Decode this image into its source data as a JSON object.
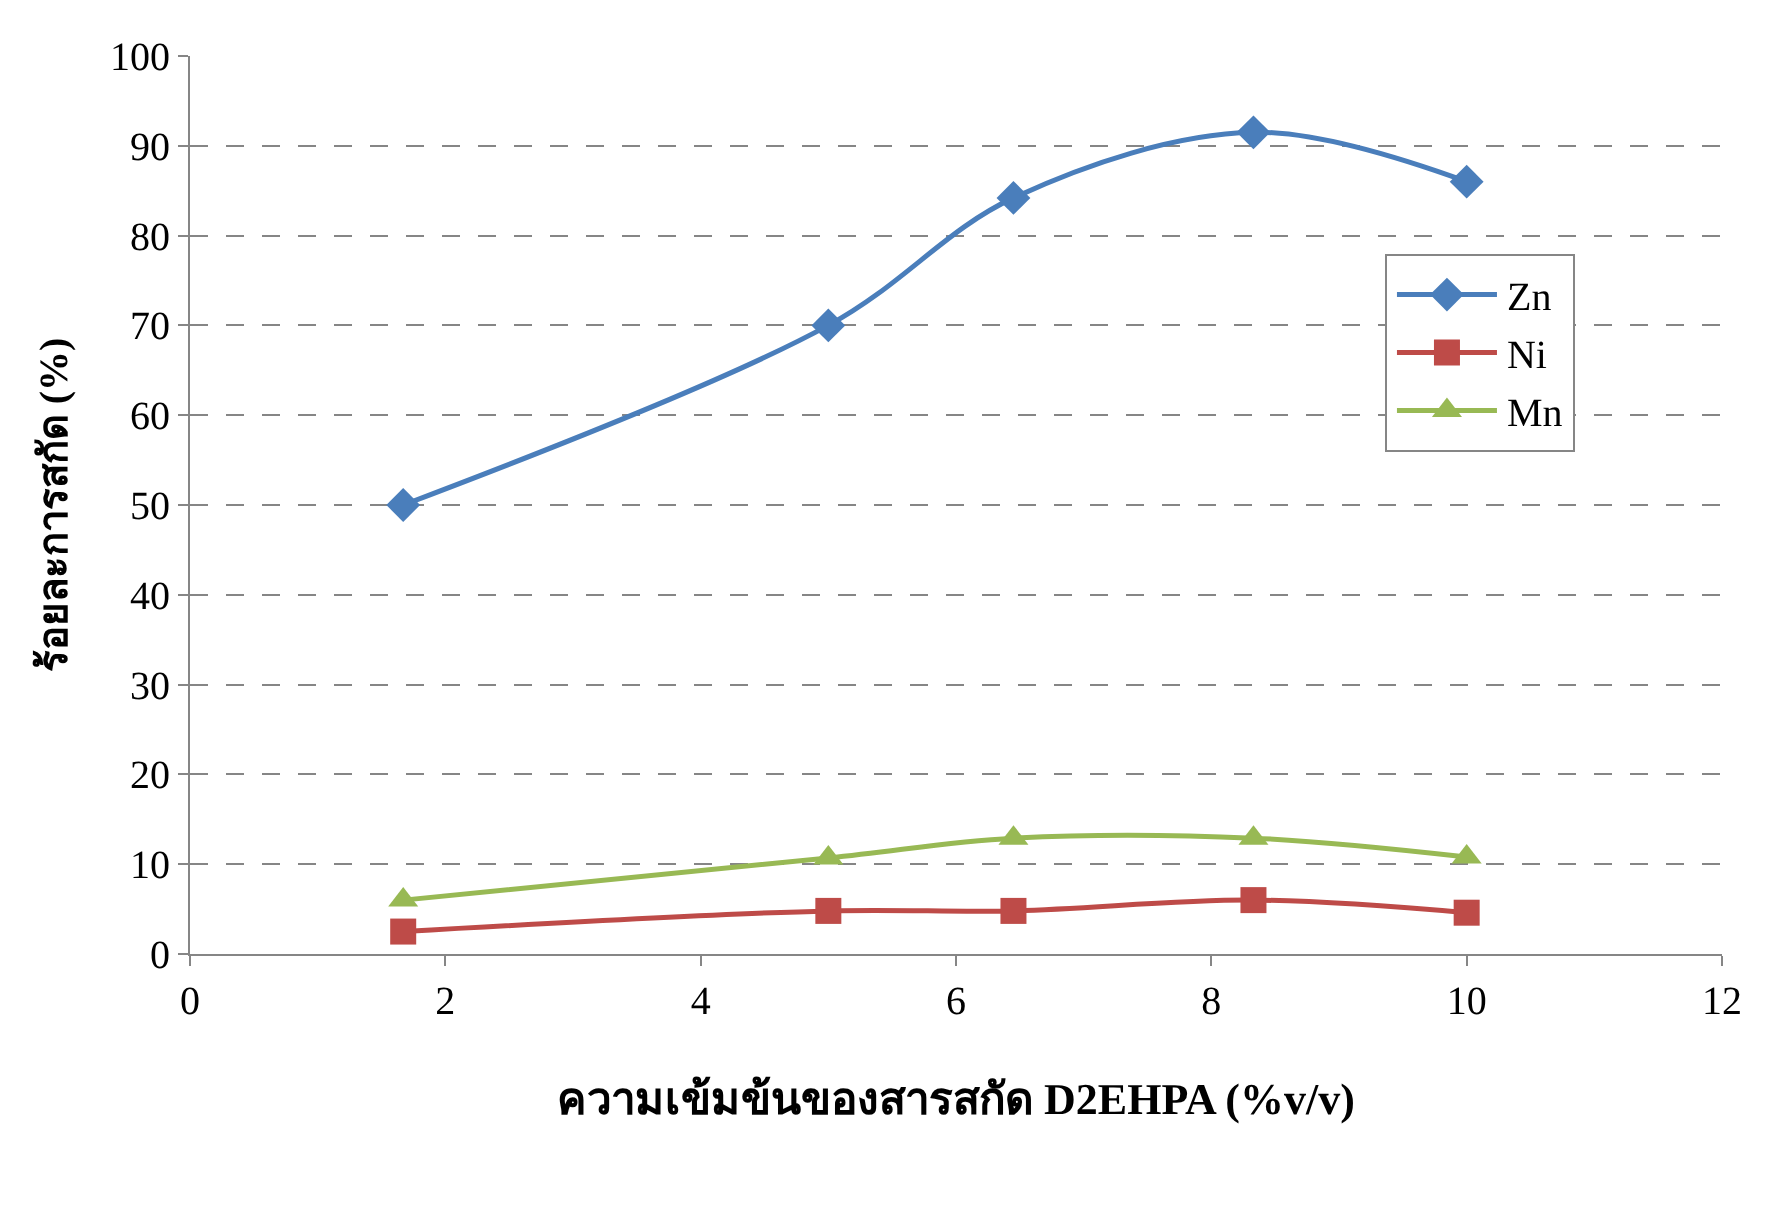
{
  "chart_data": {
    "type": "line",
    "xlabel": "ความเข้มข้นของสารสกัด D2EHPA (%v/v)",
    "ylabel": "ร้อยละการสกัด (%)",
    "x": [
      1.67,
      5,
      6.45,
      8.33,
      10
    ],
    "series": [
      {
        "name": "Zn",
        "color": "#4a7ebb",
        "values": [
          50,
          70,
          84.2,
          91.5,
          86
        ],
        "marker": "diamond"
      },
      {
        "name": "Ni",
        "color": "#be4b48",
        "values": [
          2.5,
          4.8,
          4.8,
          6,
          4.6
        ],
        "marker": "square"
      },
      {
        "name": "Mn",
        "color": "#98b954",
        "values": [
          6,
          10.7,
          12.9,
          12.9,
          10.8
        ],
        "marker": "triangle"
      }
    ],
    "xlim": [
      0,
      12
    ],
    "xticks": [
      0,
      2,
      4,
      6,
      8,
      10,
      12
    ],
    "ylim": [
      0,
      100
    ],
    "yticks": [
      0,
      10,
      20,
      30,
      40,
      50,
      60,
      70,
      80,
      90,
      100
    ],
    "grid": "y",
    "legend": "right",
    "line_style": "solid"
  }
}
